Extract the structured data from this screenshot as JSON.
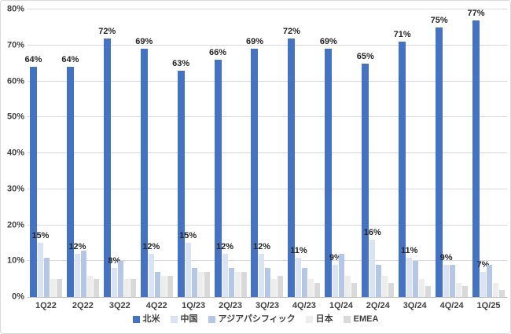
{
  "chart_data": {
    "type": "bar",
    "title": "",
    "categories": [
      "1Q22",
      "2Q22",
      "3Q22",
      "4Q22",
      "1Q/23",
      "2Q/23",
      "3Q/23",
      "4Q/23",
      "1Q/24",
      "2Q/24",
      "3Q/24",
      "4Q/24",
      "1Q/25"
    ],
    "series": [
      {
        "name": "北米",
        "color": "#4472C4",
        "data_labels": true,
        "values": [
          64,
          64,
          72,
          69,
          63,
          66,
          69,
          72,
          69,
          65,
          71,
          75,
          77
        ]
      },
      {
        "name": "中国",
        "color": "#DAE3F3",
        "data_labels": true,
        "values": [
          15,
          12,
          8,
          12,
          15,
          12,
          12,
          11,
          9,
          16,
          11,
          9,
          7
        ]
      },
      {
        "name": "アジアパシフィック",
        "color": "#B4C7E7",
        "data_labels": false,
        "values": [
          11,
          13,
          10,
          7,
          8,
          8,
          8,
          8,
          12,
          9,
          10,
          9,
          9
        ]
      },
      {
        "name": "日本",
        "color": "#EDEDED",
        "data_labels": false,
        "values": [
          5,
          6,
          5,
          6,
          7,
          7,
          5,
          5,
          6,
          6,
          5,
          4,
          4
        ]
      },
      {
        "name": "EMEA",
        "color": "#D9D9D9",
        "data_labels": false,
        "values": [
          5,
          5,
          5,
          6,
          7,
          7,
          6,
          4,
          4,
          4,
          3,
          3,
          2
        ]
      }
    ],
    "ylim": [
      0,
      80
    ],
    "y_ticks": [
      "0%",
      "10%",
      "20%",
      "30%",
      "40%",
      "50%",
      "60%",
      "70%",
      "80%"
    ],
    "value_suffix": "%",
    "grid": true,
    "legend_position": "bottom"
  },
  "colors": {
    "background": "#FFFFFF",
    "border": "#D9D9D9",
    "gridline": "#D9D9D9",
    "axis_line": "#C6C6C6",
    "tick_text": "#404040",
    "data_label_text": "#262626"
  }
}
